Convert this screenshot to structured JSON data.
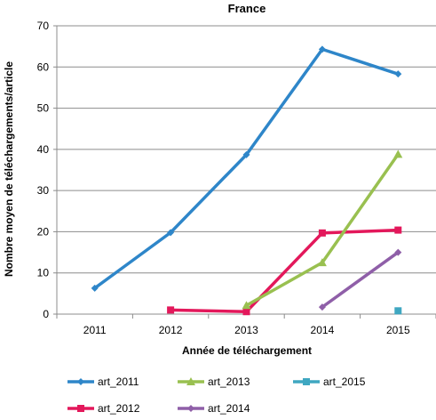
{
  "chart_data": {
    "type": "line",
    "title": "France",
    "xlabel": "Année de téléchargement",
    "ylabel": "Nombre moyen de téléchargements/article",
    "x": [
      "2011",
      "2012",
      "2013",
      "2014",
      "2015"
    ],
    "ylim": [
      0,
      70
    ],
    "yticks": [
      "0",
      "10",
      "20",
      "30",
      "40",
      "50",
      "60",
      "70"
    ],
    "legend_position": "bottom",
    "series": [
      {
        "name": "art_2011",
        "color": "#2e86c9",
        "marker": "diamond",
        "values": [
          6.3,
          19.8,
          38.7,
          64.3,
          58.3
        ]
      },
      {
        "name": "art_2012",
        "color": "#e3185b",
        "marker": "square",
        "values": [
          null,
          1.0,
          0.6,
          19.7,
          20.4
        ]
      },
      {
        "name": "art_2013",
        "color": "#99c050",
        "marker": "triangle",
        "values": [
          null,
          null,
          2.1,
          12.5,
          38.8
        ]
      },
      {
        "name": "art_2014",
        "color": "#8f5fa8",
        "marker": "diamond",
        "values": [
          null,
          null,
          null,
          1.7,
          15.0
        ]
      },
      {
        "name": "art_2015",
        "color": "#3fa7c1",
        "marker": "square",
        "values": [
          null,
          null,
          null,
          null,
          0.8
        ]
      }
    ]
  }
}
